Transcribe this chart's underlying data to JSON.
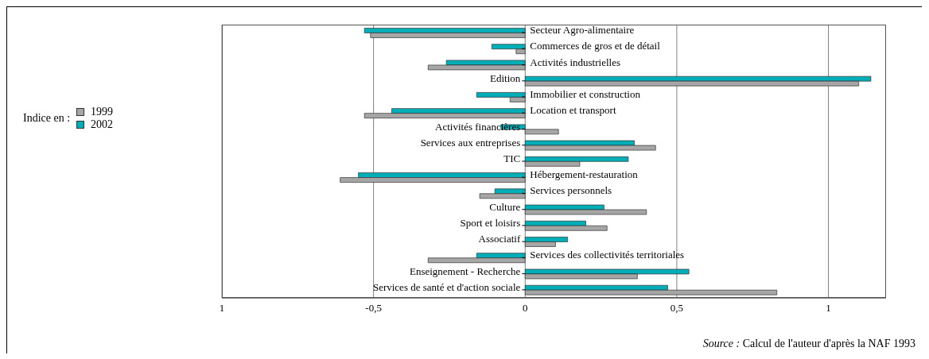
{
  "chart_data": {
    "type": "bar",
    "orientation": "horizontal",
    "legend_title": "Indice en :",
    "legend": "left",
    "categories": [
      "Secteur Agro-alimentaire",
      "Commerces de gros et de détail",
      "Activités industrielles",
      "Edition",
      "Immobilier et construction",
      "Location et transport",
      "Activités financières",
      "Services aux entreprises",
      "TIC",
      "Hébergement-restauration",
      "Services personnels",
      "Culture",
      "Sport et loisirs",
      "Associatif",
      "Services des collectivités territoriales",
      "Enseignement - Recherche",
      "Services de santé et d'action sociale"
    ],
    "series": [
      {
        "name": "2002",
        "color": "#00aeb8",
        "values": [
          -0.53,
          -0.11,
          -0.26,
          1.14,
          -0.16,
          -0.44,
          -0.08,
          0.36,
          0.34,
          -0.55,
          -0.1,
          0.26,
          0.2,
          0.14,
          -0.16,
          0.54,
          0.47
        ]
      },
      {
        "name": "1999",
        "color": "#a6a6a6",
        "values": [
          -0.51,
          -0.03,
          -0.32,
          1.1,
          -0.05,
          -0.53,
          0.11,
          0.43,
          0.18,
          -0.61,
          -0.15,
          0.4,
          0.27,
          0.1,
          -0.32,
          0.37,
          0.83
        ]
      }
    ],
    "xlim": [
      -1,
      1.19
    ],
    "xticks": [
      {
        "value": -1,
        "label": "1"
      },
      {
        "value": -0.5,
        "label": "-0,5"
      },
      0,
      {
        "value": 0.5,
        "label": "0,5"
      },
      1
    ],
    "grid": "x",
    "annotations": [
      "Source : Calcul de l'auteur d'après la NAF 1993"
    ]
  }
}
